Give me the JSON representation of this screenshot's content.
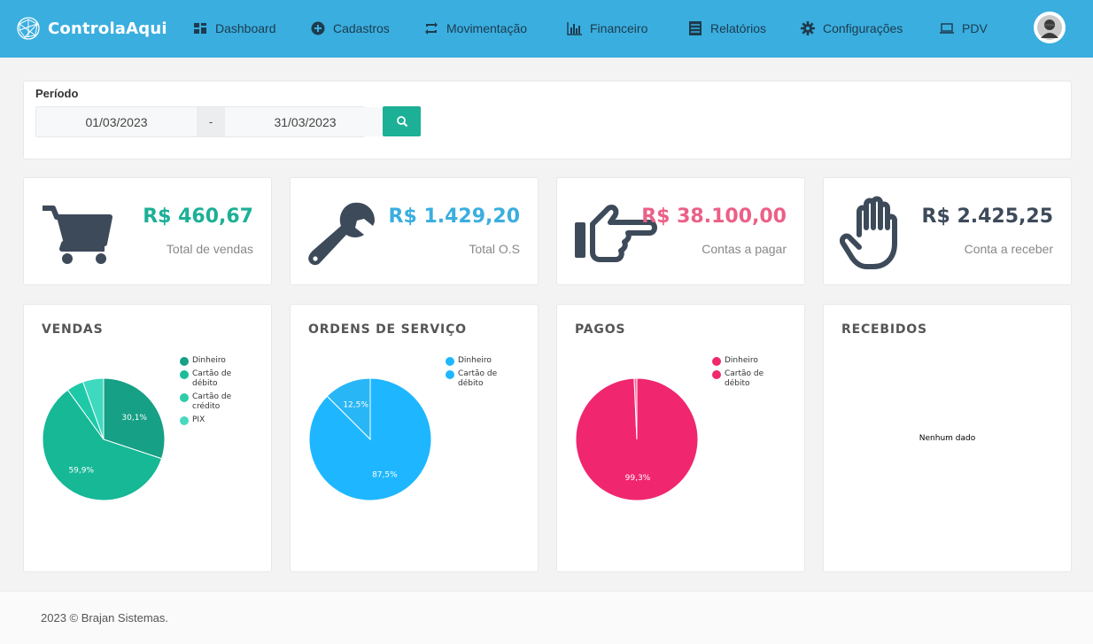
{
  "app": {
    "brand": "ControlaAqui"
  },
  "nav": {
    "items": [
      {
        "label": "Dashboard",
        "icon": "dashboard-icon"
      },
      {
        "label": "Cadastros",
        "icon": "plus-circle-icon"
      },
      {
        "label": "Movimentação",
        "icon": "retweet-icon"
      },
      {
        "label": "Financeiro",
        "icon": "bar-chart-icon"
      },
      {
        "label": "Relatórios",
        "icon": "list-icon"
      },
      {
        "label": "Configurações",
        "icon": "gear-icon"
      },
      {
        "label": "PDV",
        "icon": "laptop-icon"
      }
    ]
  },
  "filter": {
    "label": "Período",
    "start": "01/03/2023",
    "separator": "-",
    "end": "31/03/2023"
  },
  "stats": [
    {
      "value": "R$ 460,67",
      "label": "Total de vendas",
      "color": "#1cb097",
      "icon": "cart-icon"
    },
    {
      "value": "R$ 1.429,20",
      "label": "Total O.S",
      "color": "#3aaedf",
      "icon": "wrench-icon"
    },
    {
      "value": "R$ 38.100,00",
      "label": "Contas a pagar",
      "color": "#ec5f87",
      "icon": "hand-pointing-icon"
    },
    {
      "value": "R$ 2.425,25",
      "label": "Conta a receber",
      "color": "#3d4a5a",
      "icon": "hand-open-icon"
    }
  ],
  "charts": [
    {
      "title": "VENDAS",
      "legend": [
        {
          "label": "Dinheiro",
          "color": "#16a085"
        },
        {
          "label": "Cartão de débito",
          "color": "#1abc9c"
        },
        {
          "label": "Cartão de crédito",
          "color": "#2ecca7"
        },
        {
          "label": "PIX",
          "color": "#48d9c0"
        }
      ],
      "slice_labels": [
        "30,1%",
        "59,9%"
      ]
    },
    {
      "title": "ORDENS DE SERVIÇO",
      "legend": [
        {
          "label": "Dinheiro",
          "color": "#1eb7ff"
        },
        {
          "label": "Cartão de débito",
          "color": "#1eb7ff"
        }
      ],
      "slice_labels": [
        "12,5%",
        "87,5%"
      ]
    },
    {
      "title": "PAGOS",
      "legend": [
        {
          "label": "Dinheiro",
          "color": "#f0286c"
        },
        {
          "label": "Cartão de débito",
          "color": "#f0286c"
        }
      ],
      "slice_labels": [
        "99,3%"
      ]
    },
    {
      "title": "RECEBIDOS",
      "legend": [],
      "nodata": "Nenhum dado"
    }
  ],
  "chart_data": [
    {
      "type": "pie",
      "title": "VENDAS",
      "categories": [
        "Dinheiro",
        "Cartão de débito",
        "Cartão de crédito",
        "PIX"
      ],
      "values": [
        30.1,
        59.9,
        4.5,
        5.5
      ]
    },
    {
      "type": "pie",
      "title": "ORDENS DE SERVIÇO",
      "categories": [
        "Dinheiro",
        "Cartão de débito"
      ],
      "values": [
        87.5,
        12.5
      ]
    },
    {
      "type": "pie",
      "title": "PAGOS",
      "categories": [
        "Dinheiro",
        "Cartão de débito"
      ],
      "values": [
        99.3,
        0.7
      ]
    },
    {
      "type": "pie",
      "title": "RECEBIDOS",
      "categories": [],
      "values": []
    }
  ],
  "footer": {
    "text": "2023 © Brajan Sistemas."
  }
}
